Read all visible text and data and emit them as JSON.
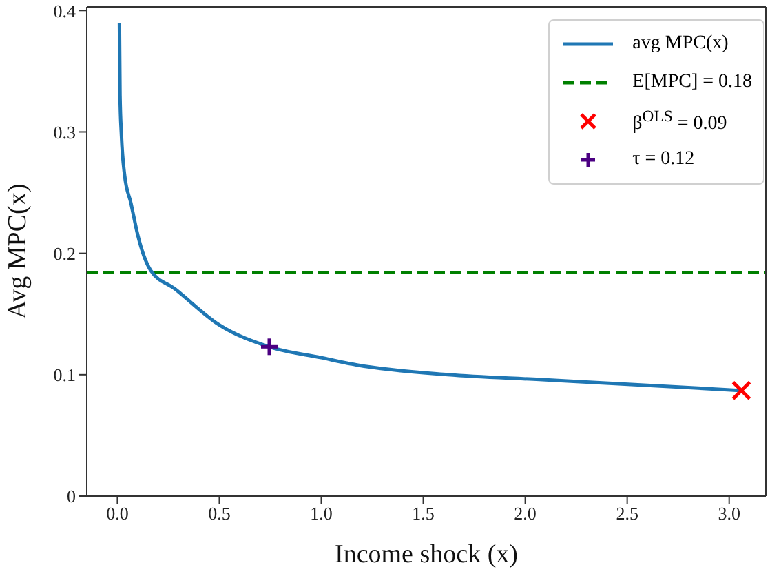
{
  "chart_data": {
    "type": "line",
    "xlabel": "Income shock (x)",
    "ylabel": "Avg MPC(x)",
    "xlim": [
      -0.15,
      3.18
    ],
    "ylim": [
      0,
      0.403
    ],
    "xticks": [
      {
        "value": 0,
        "label": "0.0"
      },
      0.5,
      {
        "value": 1,
        "label": "1.0"
      },
      1.5,
      {
        "value": 2,
        "label": "2.0"
      },
      2.5,
      {
        "value": 3,
        "label": "3.0"
      }
    ],
    "yticks": [
      0,
      0.1,
      0.2,
      0.3,
      0.4
    ],
    "grid": false,
    "legend": "top right",
    "series": [
      {
        "name": "avg MPC(x)",
        "color": "#1f77b4",
        "marker": "none",
        "line_style": "solid",
        "x": [
          0.01,
          0.013,
          0.02,
          0.035,
          0.067,
          0.1,
          0.163,
          0.28,
          0.5,
          0.745,
          1.0,
          1.175,
          1.62,
          2.07,
          2.52,
          3.05
        ],
        "values": [
          0.39,
          0.33,
          0.297,
          0.265,
          0.241,
          0.215,
          0.186,
          0.171,
          0.141,
          0.123,
          0.114,
          0.108,
          0.1,
          0.096,
          0.092,
          0.087
        ]
      },
      {
        "name": "β$^{OLS}$ = 0.09",
        "type": "scatter",
        "color": "#ff0000",
        "marker": "x",
        "x": [
          3.06
        ],
        "values": [
          0.087
        ]
      },
      {
        "name": "τ = 0.12",
        "type": "scatter",
        "color": "#4b0082",
        "marker": "plus",
        "x": [
          0.745
        ],
        "values": [
          0.123
        ]
      }
    ],
    "ref_lines": [
      {
        "axis": "y",
        "value": 0.184,
        "label": "E[MPC] = 0.18",
        "color": "#008000",
        "line_style": "dashed"
      }
    ]
  }
}
